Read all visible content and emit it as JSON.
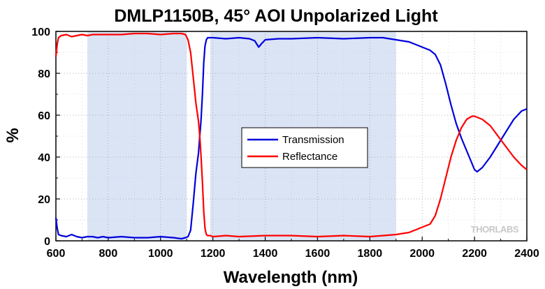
{
  "chart_data": {
    "type": "line",
    "title": "DMLP1150B, 45° AOI Unpolarized Light",
    "xlabel": "Wavelength (nm)",
    "ylabel": "%",
    "xlim": [
      600,
      2400
    ],
    "ylim": [
      0,
      100
    ],
    "xticks": [
      600,
      800,
      1000,
      1200,
      1400,
      1600,
      1800,
      2000,
      2200,
      2400
    ],
    "yticks": [
      0,
      20,
      40,
      60,
      80,
      100
    ],
    "grid": true,
    "legend": "center",
    "shaded_regions": [
      [
        720,
        1100
      ],
      [
        1190,
        1900
      ]
    ],
    "shaded_color": "#dbe4f5",
    "series": [
      {
        "name": "Transmission",
        "color": "#0000dd",
        "x": [
          600,
          605,
          610,
          620,
          640,
          660,
          680,
          700,
          720,
          740,
          760,
          780,
          800,
          850,
          900,
          950,
          1000,
          1050,
          1080,
          1095,
          1105,
          1115,
          1125,
          1135,
          1145,
          1150,
          1155,
          1160,
          1165,
          1170,
          1175,
          1180,
          1190,
          1200,
          1250,
          1300,
          1340,
          1360,
          1375,
          1385,
          1400,
          1450,
          1500,
          1600,
          1700,
          1800,
          1850,
          1900,
          1950,
          1990,
          2030,
          2050,
          2070,
          2090,
          2110,
          2130,
          2150,
          2170,
          2190,
          2200,
          2210,
          2230,
          2260,
          2290,
          2320,
          2350,
          2380,
          2400
        ],
        "y": [
          11,
          6,
          3,
          2.5,
          2,
          3,
          2,
          1.5,
          2,
          2,
          1.5,
          2,
          1.5,
          2,
          1.5,
          1.5,
          2,
          1.5,
          1,
          1.5,
          2,
          5,
          18,
          32,
          42,
          50,
          58,
          70,
          85,
          93,
          96,
          97,
          97,
          97,
          96.5,
          97,
          96.5,
          95.5,
          92.5,
          94,
          96,
          96.5,
          96.5,
          97,
          96.5,
          97,
          97,
          96,
          95,
          93,
          91,
          89,
          84,
          75,
          65,
          56,
          49,
          43,
          37,
          34,
          33,
          35,
          40,
          46,
          52,
          58,
          62,
          63
        ]
      },
      {
        "name": "Reflectance",
        "color": "#ff0000",
        "x": [
          600,
          605,
          610,
          620,
          640,
          660,
          680,
          700,
          720,
          740,
          760,
          780,
          800,
          850,
          900,
          950,
          1000,
          1050,
          1080,
          1095,
          1105,
          1115,
          1125,
          1135,
          1145,
          1150,
          1155,
          1160,
          1165,
          1170,
          1175,
          1180,
          1190,
          1200,
          1250,
          1300,
          1400,
          1500,
          1600,
          1700,
          1800,
          1850,
          1900,
          1950,
          1990,
          2030,
          2050,
          2070,
          2090,
          2110,
          2130,
          2150,
          2170,
          2190,
          2200,
          2210,
          2230,
          2260,
          2290,
          2320,
          2350,
          2380,
          2400
        ],
        "y": [
          88,
          94,
          97,
          98,
          98.5,
          97.5,
          98,
          98.5,
          98,
          98.5,
          98.5,
          98.5,
          98.5,
          98.5,
          99,
          99,
          98.5,
          99,
          99,
          98.5,
          96,
          90,
          78,
          66,
          57,
          50,
          40,
          28,
          14,
          6,
          3,
          2.5,
          2.5,
          2,
          2.5,
          2,
          2.5,
          2.5,
          2,
          2.5,
          2,
          2.5,
          3,
          4,
          6,
          8,
          12,
          20,
          30,
          40,
          48,
          54,
          58,
          59.5,
          59.5,
          59,
          58,
          55,
          50,
          45,
          40,
          36,
          34
        ]
      }
    ]
  },
  "watermark_text": "THORLABS"
}
